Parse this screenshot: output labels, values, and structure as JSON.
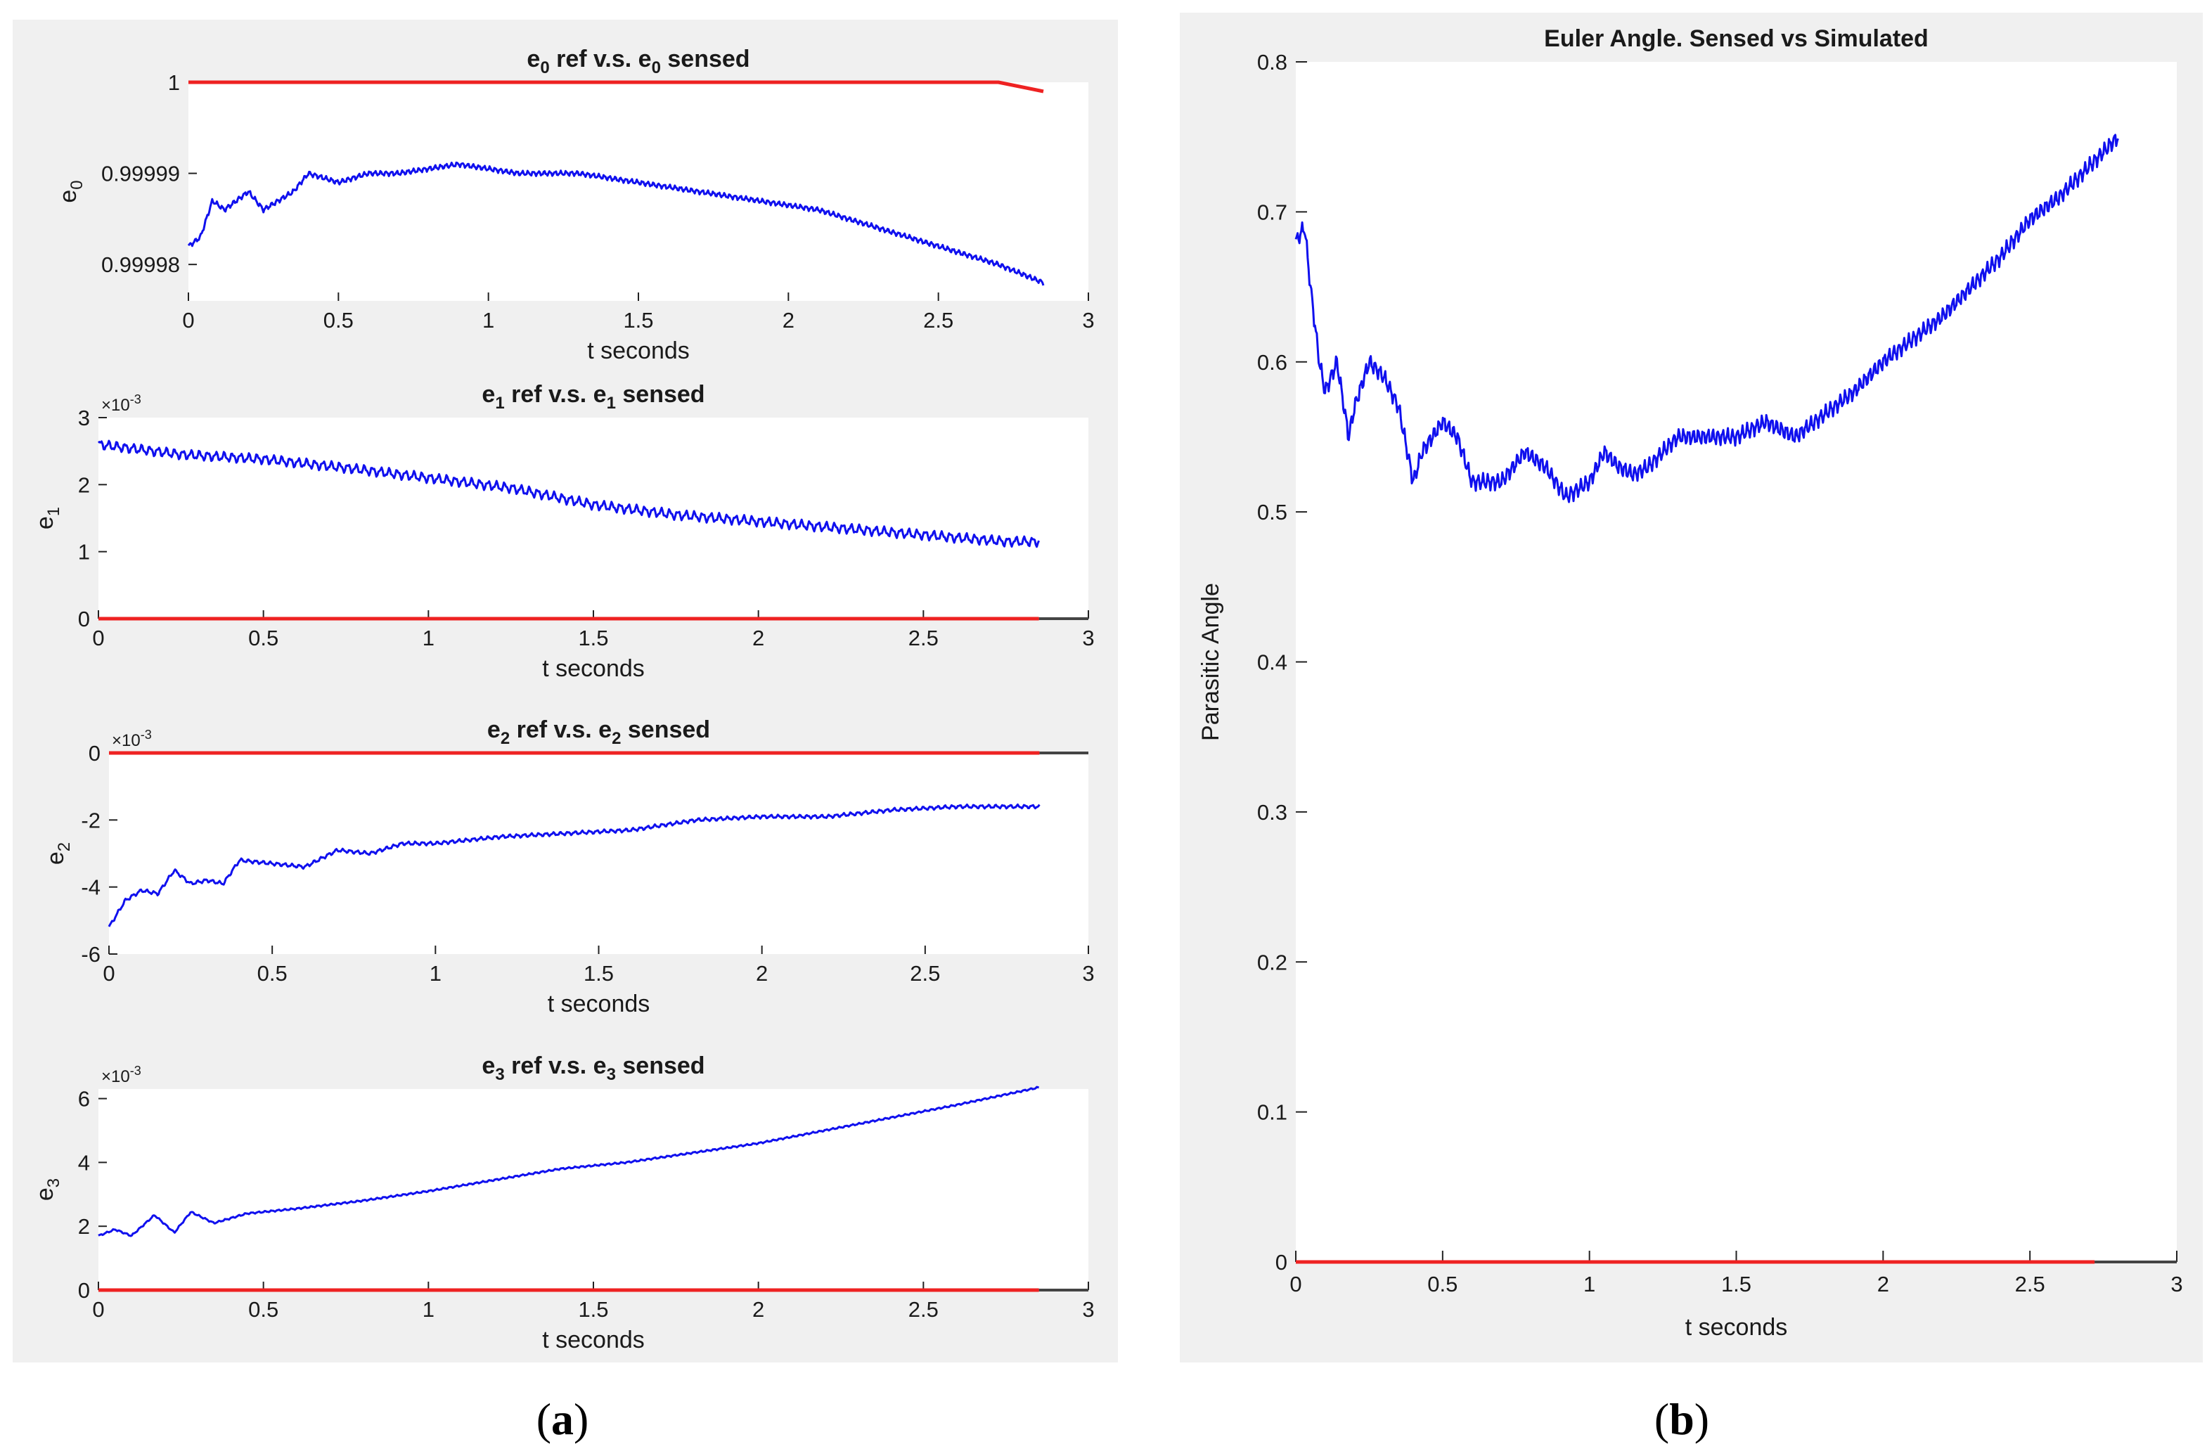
{
  "panels": {
    "a": {
      "caption_open": "(",
      "caption_letter": "a",
      "caption_close": ")"
    },
    "b": {
      "caption_open": "(",
      "caption_letter": "b",
      "caption_close": ")"
    }
  },
  "colors": {
    "sensed": "#1010ee",
    "ref": "#ee2222",
    "panel_bg": "#f0f0f0"
  },
  "chart_data": [
    {
      "id": "e0",
      "type": "line",
      "title": {
        "pre": "e",
        "sub": "0",
        "mid": " ref  v.s.  e",
        "sub2": "0",
        "post": "  sensed"
      },
      "ylabel": {
        "main": "e",
        "sub": "0"
      },
      "xlabel": "t seconds",
      "xlim": [
        0,
        3
      ],
      "ylim": [
        0.999976,
        1.0
      ],
      "xticks": [
        "0",
        "0.5",
        "1",
        "1.5",
        "2",
        "2.5",
        "3"
      ],
      "yticks": [
        {
          "v": 0.99998,
          "label": "0.99998"
        },
        {
          "v": 0.99999,
          "label": "0.99999"
        },
        {
          "v": 1.0,
          "label": "1"
        }
      ],
      "exponent": "",
      "series": [
        {
          "name": "e0 ref",
          "role": "ref",
          "x": [
            0,
            2.7,
            2.85
          ],
          "y": [
            1.0,
            1.0,
            0.999999
          ]
        },
        {
          "name": "e0 sensed",
          "role": "sensed",
          "noise_amp": 3e-07,
          "noise_freq": 55,
          "x": [
            0,
            0.04,
            0.08,
            0.12,
            0.16,
            0.2,
            0.25,
            0.3,
            0.35,
            0.4,
            0.5,
            0.6,
            0.7,
            0.9,
            1.1,
            1.3,
            1.5,
            1.7,
            1.9,
            2.1,
            2.3,
            2.5,
            2.7,
            2.85
          ],
          "y": [
            0.999982,
            0.999983,
            0.999987,
            0.999986,
            0.999987,
            0.999988,
            0.999986,
            0.999987,
            0.999988,
            0.99999,
            0.999989,
            0.99999,
            0.99999,
            0.999991,
            0.99999,
            0.99999,
            0.999989,
            0.999988,
            0.999987,
            0.999986,
            0.999984,
            0.999982,
            0.99998,
            0.999978
          ]
        }
      ]
    },
    {
      "id": "e1",
      "type": "line",
      "title": {
        "pre": "e",
        "sub": "1",
        "mid": "  ref  v.s.  e",
        "sub2": "1",
        "post": "  sensed"
      },
      "ylabel": {
        "main": "e",
        "sub": "1"
      },
      "xlabel": "t seconds",
      "xlim": [
        0,
        3
      ],
      "ylim": [
        0,
        3
      ],
      "xticks": [
        "0",
        "0.5",
        "1",
        "1.5",
        "2",
        "2.5",
        "3"
      ],
      "yticks": [
        {
          "v": 0,
          "label": "0"
        },
        {
          "v": 1,
          "label": "1"
        },
        {
          "v": 2,
          "label": "2"
        },
        {
          "v": 3,
          "label": "3"
        }
      ],
      "exponent": "×10",
      "exponent_power": "-3",
      "series": [
        {
          "name": "e1 ref",
          "role": "ref",
          "x": [
            0,
            2.85
          ],
          "y": [
            0,
            0
          ]
        },
        {
          "name": "e1 sensed",
          "role": "sensed",
          "noise_amp": 0.08,
          "noise_freq": 40,
          "x": [
            0,
            0.25,
            0.5,
            0.75,
            1.0,
            1.25,
            1.5,
            1.75,
            2.0,
            2.25,
            2.5,
            2.75,
            2.85
          ],
          "y": [
            2.6,
            2.45,
            2.38,
            2.25,
            2.1,
            1.95,
            1.7,
            1.55,
            1.45,
            1.35,
            1.25,
            1.15,
            1.15
          ]
        }
      ]
    },
    {
      "id": "e2",
      "type": "line",
      "title": {
        "pre": "e",
        "sub": "2",
        "mid": "  ref  v.s.  e",
        "sub2": "2",
        "post": "  sensed"
      },
      "ylabel": {
        "main": "e",
        "sub": "2"
      },
      "xlabel": "t  seconds",
      "xlim": [
        0,
        3
      ],
      "ylim": [
        -6,
        0
      ],
      "xticks": [
        "0",
        "0.5",
        "1",
        "1.5",
        "2",
        "2.5",
        "3"
      ],
      "yticks": [
        {
          "v": -6,
          "label": "-6"
        },
        {
          "v": -4,
          "label": "-4"
        },
        {
          "v": -2,
          "label": "-2"
        },
        {
          "v": 0,
          "label": "0"
        }
      ],
      "exponent": "×10",
      "exponent_power": "-3",
      "series": [
        {
          "name": "e2 ref",
          "role": "ref",
          "x": [
            0,
            2.85
          ],
          "y": [
            0,
            0
          ]
        },
        {
          "name": "e2 sensed",
          "role": "sensed",
          "noise_amp": 0.06,
          "noise_freq": 45,
          "x": [
            0,
            0.05,
            0.1,
            0.15,
            0.2,
            0.25,
            0.3,
            0.35,
            0.4,
            0.5,
            0.6,
            0.7,
            0.8,
            0.9,
            1.0,
            1.2,
            1.4,
            1.6,
            1.8,
            2.0,
            2.2,
            2.4,
            2.6,
            2.7,
            2.85
          ],
          "y": [
            -5.2,
            -4.4,
            -4.1,
            -4.2,
            -3.5,
            -3.9,
            -3.8,
            -3.9,
            -3.2,
            -3.3,
            -3.4,
            -2.9,
            -3.0,
            -2.7,
            -2.7,
            -2.5,
            -2.4,
            -2.3,
            -2.0,
            -1.9,
            -1.9,
            -1.7,
            -1.6,
            -1.6,
            -1.6
          ]
        }
      ]
    },
    {
      "id": "e3",
      "type": "line",
      "title": {
        "pre": "e",
        "sub": "3",
        "mid": "  ref  v.s.  e",
        "sub2": "3",
        "post": "  sensed"
      },
      "ylabel": {
        "main": "e",
        "sub": "3"
      },
      "xlabel": "t seconds",
      "xlim": [
        0,
        3
      ],
      "ylim": [
        0,
        6.3
      ],
      "xticks": [
        "0",
        "0.5",
        "1",
        "1.5",
        "2",
        "2.5",
        "3"
      ],
      "yticks": [
        {
          "v": 0,
          "label": "0"
        },
        {
          "v": 2,
          "label": "2"
        },
        {
          "v": 4,
          "label": "4"
        },
        {
          "v": 6,
          "label": "6"
        }
      ],
      "exponent": "×10",
      "exponent_power": "-3",
      "series": [
        {
          "name": "e3 ref",
          "role": "ref",
          "x": [
            0,
            2.85
          ],
          "y": [
            0,
            0
          ]
        },
        {
          "name": "e3 sensed",
          "role": "sensed",
          "noise_amp": 0.03,
          "noise_freq": 50,
          "x": [
            0,
            0.05,
            0.1,
            0.17,
            0.23,
            0.28,
            0.35,
            0.45,
            0.6,
            0.8,
            1.0,
            1.2,
            1.4,
            1.6,
            1.8,
            2.0,
            2.2,
            2.4,
            2.6,
            2.85
          ],
          "y": [
            1.7,
            1.9,
            1.7,
            2.35,
            1.8,
            2.45,
            2.1,
            2.4,
            2.55,
            2.8,
            3.1,
            3.45,
            3.8,
            4.0,
            4.3,
            4.6,
            5.0,
            5.4,
            5.8,
            6.35
          ]
        }
      ]
    },
    {
      "id": "euler",
      "type": "line",
      "title": {
        "pre": "Euler Angle. Sensed vs Simulated",
        "sub": "",
        "mid": "",
        "sub2": "",
        "post": ""
      },
      "ylabel": {
        "main": "Parasitic Angle",
        "sub": ""
      },
      "xlabel": "t seconds",
      "xlim": [
        0,
        3
      ],
      "ylim": [
        0,
        0.8
      ],
      "xticks": [
        "0",
        "0.5",
        "1",
        "1.5",
        "2",
        "2.5",
        "3"
      ],
      "yticks": [
        {
          "v": 0,
          "label": "0"
        },
        {
          "v": 0.1,
          "label": "0.1"
        },
        {
          "v": 0.2,
          "label": "0.2"
        },
        {
          "v": 0.3,
          "label": "0.3"
        },
        {
          "v": 0.4,
          "label": "0.4"
        },
        {
          "v": 0.5,
          "label": "0.5"
        },
        {
          "v": 0.6,
          "label": "0.6"
        },
        {
          "v": 0.7,
          "label": "0.7"
        },
        {
          "v": 0.8,
          "label": "0.8"
        }
      ],
      "exponent": "",
      "series": [
        {
          "name": "euler ref",
          "role": "ref",
          "x": [
            0,
            2.72
          ],
          "y": [
            0,
            0
          ]
        },
        {
          "name": "euler sensed",
          "role": "sensed",
          "noise_amp": 0.006,
          "noise_freq": 60,
          "x": [
            0,
            0.03,
            0.05,
            0.08,
            0.1,
            0.14,
            0.18,
            0.2,
            0.25,
            0.3,
            0.35,
            0.4,
            0.43,
            0.5,
            0.55,
            0.6,
            0.65,
            0.7,
            0.78,
            0.85,
            0.92,
            1.0,
            1.05,
            1.1,
            1.15,
            1.2,
            1.3,
            1.4,
            1.5,
            1.6,
            1.7,
            1.8,
            1.9,
            2.0,
            2.1,
            2.2,
            2.3,
            2.4,
            2.5,
            2.6,
            2.7,
            2.8
          ],
          "y": [
            0.68,
            0.69,
            0.65,
            0.6,
            0.58,
            0.6,
            0.55,
            0.57,
            0.6,
            0.59,
            0.57,
            0.52,
            0.54,
            0.56,
            0.55,
            0.52,
            0.52,
            0.52,
            0.54,
            0.53,
            0.51,
            0.52,
            0.54,
            0.53,
            0.525,
            0.53,
            0.55,
            0.55,
            0.55,
            0.56,
            0.55,
            0.565,
            0.58,
            0.6,
            0.615,
            0.63,
            0.65,
            0.67,
            0.695,
            0.71,
            0.73,
            0.75
          ]
        }
      ]
    }
  ]
}
